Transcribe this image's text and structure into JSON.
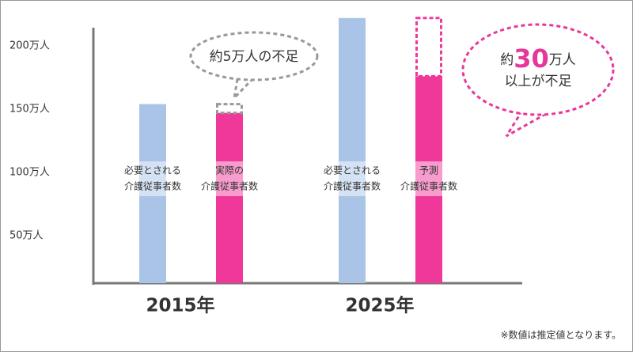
{
  "chart_data": {
    "type": "bar",
    "categories": [
      "2015年",
      "2025年"
    ],
    "series": [
      {
        "color": "#a9c4e6",
        "values": [
          154,
          222
        ],
        "bar_labels": [
          [
            "必要とされる",
            "介護従事者数"
          ],
          [
            "必要とされる",
            "介護従事者数"
          ]
        ]
      },
      {
        "color": "#f0389a",
        "values": [
          147,
          176
        ],
        "bar_labels": [
          [
            "実際の",
            "介護従事者数"
          ],
          [
            "予測",
            "介護従事者数"
          ]
        ]
      }
    ],
    "ylim": [
      12.5,
      225
    ],
    "yticks": [
      {
        "value": 50,
        "label": "50万人"
      },
      {
        "value": 100,
        "label": "100万人"
      },
      {
        "value": 150,
        "label": "150万人"
      },
      {
        "value": 200,
        "label": "200万人"
      }
    ],
    "annotations": {
      "shortfall_2015": "約5万人の不足",
      "shortfall_2025": [
        "約",
        "30",
        "万人",
        "以上が不足"
      ]
    },
    "note": "※数値は推定値となります。"
  }
}
